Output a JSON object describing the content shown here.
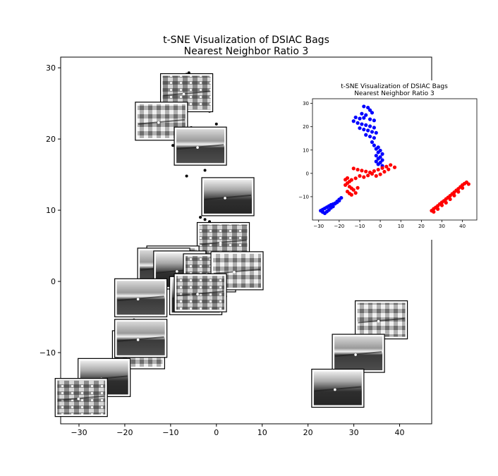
{
  "chart_data": [
    {
      "type": "scatter",
      "title": "t-SNE Visualization of DSIAC Bags",
      "subtitle": "Nearest Neighbor Ratio 3",
      "xlim": [
        -34,
        47
      ],
      "ylim": [
        -20,
        31.5
      ],
      "xticks": [
        -30,
        -20,
        -10,
        0,
        10,
        20,
        30,
        40
      ],
      "yticks": [
        -10,
        0,
        10,
        20,
        30
      ],
      "points": [
        [
          -6.5,
          29.1
        ],
        [
          -6.0,
          29.3
        ],
        [
          -2.5,
          26.3
        ],
        [
          -4.0,
          24.5
        ],
        [
          -1.5,
          23.9
        ],
        [
          -7.0,
          22.6
        ],
        [
          -6.5,
          21.9
        ],
        [
          -5.5,
          21.6
        ],
        [
          0.0,
          22.1
        ],
        [
          -1.5,
          20.6
        ],
        [
          -9.5,
          19.1
        ],
        [
          -3.5,
          16.6
        ],
        [
          -2.5,
          15.6
        ],
        [
          -6.5,
          14.8
        ],
        [
          -2.0,
          12.9
        ],
        [
          -3.5,
          9.0
        ],
        [
          -1.5,
          8.4
        ],
        [
          -2.5,
          8.7
        ],
        [
          3.5,
          4.4
        ],
        [
          -3.5,
          2.9
        ],
        [
          -2.0,
          2.2
        ],
        [
          -1.0,
          1.1
        ],
        [
          1.5,
          -2.3
        ],
        [
          2.0,
          -2.1
        ],
        [
          -2.0,
          -3.3
        ],
        [
          -13.0,
          -4.3
        ],
        [
          -14.5,
          -5.5
        ],
        [
          -15.5,
          -5.9
        ],
        [
          -13.5,
          -5.5
        ],
        [
          -14.5,
          -6.6
        ],
        [
          -18.0,
          -5.4
        ],
        [
          -18.0,
          -6.5
        ],
        [
          -12.0,
          -9.4
        ],
        [
          -11.5,
          -7.4
        ]
      ],
      "point_color": "#000000",
      "thumbnails": [
        [
          -6.5,
          26.5
        ],
        [
          -12,
          22.5
        ],
        [
          -3.5,
          19
        ],
        [
          2.5,
          11.9
        ],
        [
          1.5,
          5.6
        ],
        [
          -9.5,
          2.3
        ],
        [
          -11.5,
          2.0
        ],
        [
          -8.0,
          1.6
        ],
        [
          -1.5,
          1.2
        ],
        [
          4.5,
          1.5
        ],
        [
          -16.5,
          -2.3
        ],
        [
          -4.5,
          -2.0
        ],
        [
          -3.5,
          -1.6
        ],
        [
          -17.0,
          -9.6
        ],
        [
          -16.5,
          -8.0
        ],
        [
          -24.5,
          -13.5
        ],
        [
          -29.5,
          -16.3
        ],
        [
          36.0,
          -5.4
        ],
        [
          31.0,
          -10.1
        ],
        [
          26.5,
          -15.0
        ]
      ]
    },
    {
      "type": "scatter",
      "title": "t-SNE Visualization of DSIAC Bags",
      "subtitle": "Nearest Neighbor Ratio 3",
      "xlim": [
        -33,
        47
      ],
      "ylim": [
        -20,
        32
      ],
      "xticks": [
        -30,
        -20,
        -10,
        0,
        10,
        20,
        30,
        40
      ],
      "yticks": [
        -10,
        0,
        10,
        20,
        30
      ],
      "series": [
        {
          "color": "#0000ff",
          "points": [
            [
              -8,
              28.7
            ],
            [
              -6,
              28.2
            ],
            [
              -5,
              27.1
            ],
            [
              -4,
              26.0
            ],
            [
              -9,
              25.6
            ],
            [
              -7,
              25.0
            ],
            [
              -12,
              24.0
            ],
            [
              -10,
              23.5
            ],
            [
              -8,
              23.8
            ],
            [
              -5,
              23.2
            ],
            [
              -3,
              22.7
            ],
            [
              -13,
              22.4
            ],
            [
              -11,
              21.6
            ],
            [
              -9,
              21.1
            ],
            [
              -7,
              20.7
            ],
            [
              -5,
              20.2
            ],
            [
              -3,
              19.6
            ],
            [
              -10,
              19.4
            ],
            [
              -8,
              18.8
            ],
            [
              -6,
              18.4
            ],
            [
              -4,
              17.8
            ],
            [
              -2,
              17.4
            ],
            [
              -7,
              16.5
            ],
            [
              -5,
              15.8
            ],
            [
              -3,
              15.2
            ],
            [
              -4,
              13.4
            ],
            [
              -3,
              12.0
            ],
            [
              -1,
              11.2
            ],
            [
              -2,
              10.5
            ],
            [
              0,
              9.8
            ],
            [
              -1,
              9.0
            ],
            [
              1,
              8.3
            ],
            [
              -2,
              7.6
            ],
            [
              0,
              7.0
            ],
            [
              -1,
              6.3
            ],
            [
              1,
              5.7
            ],
            [
              -2,
              5.1
            ],
            [
              0,
              4.6
            ],
            [
              -1,
              3.9
            ],
            [
              1,
              3.2
            ],
            [
              -19,
              -10.5
            ],
            [
              -20,
              -11.2
            ],
            [
              -21,
              -12.0
            ],
            [
              -22,
              -12.8
            ],
            [
              -23,
              -13.2
            ],
            [
              -24,
              -13.5
            ],
            [
              -25,
              -14.0
            ],
            [
              -26,
              -14.5
            ],
            [
              -27,
              -15.0
            ],
            [
              -28,
              -15.5
            ],
            [
              -29,
              -16.0
            ],
            [
              -28,
              -16.6
            ],
            [
              -27,
              -17.1
            ],
            [
              -26,
              -16.4
            ],
            [
              -25,
              -15.7
            ],
            [
              -24,
              -14.8
            ],
            [
              -23,
              -14.2
            ],
            [
              -22,
              -13.0
            ],
            [
              -21,
              -12.4
            ],
            [
              -20,
              -11.7
            ]
          ]
        },
        {
          "color": "#ff0000",
          "points": [
            [
              -13,
              2.1
            ],
            [
              -11,
              1.6
            ],
            [
              -9,
              1.2
            ],
            [
              -7,
              0.8
            ],
            [
              -5,
              0.4
            ],
            [
              -3,
              1.0
            ],
            [
              -1,
              1.6
            ],
            [
              1,
              2.3
            ],
            [
              3,
              2.9
            ],
            [
              5,
              3.6
            ],
            [
              7,
              2.6
            ],
            [
              4,
              1.7
            ],
            [
              2,
              0.7
            ],
            [
              0,
              -0.4
            ],
            [
              -2,
              -1.1
            ],
            [
              -4,
              -0.2
            ],
            [
              -6,
              -0.9
            ],
            [
              -8,
              -1.6
            ],
            [
              -10,
              -1.1
            ],
            [
              -12,
              -2.1
            ],
            [
              -14,
              -2.8
            ],
            [
              -15,
              -3.5
            ],
            [
              -16,
              -4.2
            ],
            [
              -17,
              -5.0
            ],
            [
              -15,
              -5.7
            ],
            [
              -14,
              -6.4
            ],
            [
              -13,
              -7.1
            ],
            [
              -16,
              -7.8
            ],
            [
              -15,
              -8.6
            ],
            [
              -14,
              -9.2
            ],
            [
              -12,
              -8.4
            ],
            [
              -11,
              -6.2
            ],
            [
              -16,
              -2.0
            ],
            [
              -17,
              -2.7
            ],
            [
              25,
              -16.0
            ],
            [
              26,
              -15.2
            ],
            [
              27,
              -14.6
            ],
            [
              28,
              -13.9
            ],
            [
              29,
              -13.1
            ],
            [
              30,
              -12.4
            ],
            [
              31,
              -11.8
            ],
            [
              32,
              -11.0
            ],
            [
              33,
              -10.3
            ],
            [
              34,
              -9.6
            ],
            [
              35,
              -8.8
            ],
            [
              36,
              -8.1
            ],
            [
              37,
              -7.3
            ],
            [
              38,
              -6.6
            ],
            [
              39,
              -5.8
            ],
            [
              40,
              -5.0
            ],
            [
              41,
              -4.4
            ],
            [
              42,
              -3.8
            ],
            [
              43,
              -4.6
            ],
            [
              26,
              -16.5
            ],
            [
              28,
              -15.3
            ],
            [
              30,
              -13.7
            ],
            [
              32,
              -12.6
            ],
            [
              34,
              -11.1
            ],
            [
              36,
              -9.5
            ],
            [
              38,
              -7.9
            ],
            [
              40,
              -6.3
            ]
          ]
        }
      ]
    }
  ]
}
